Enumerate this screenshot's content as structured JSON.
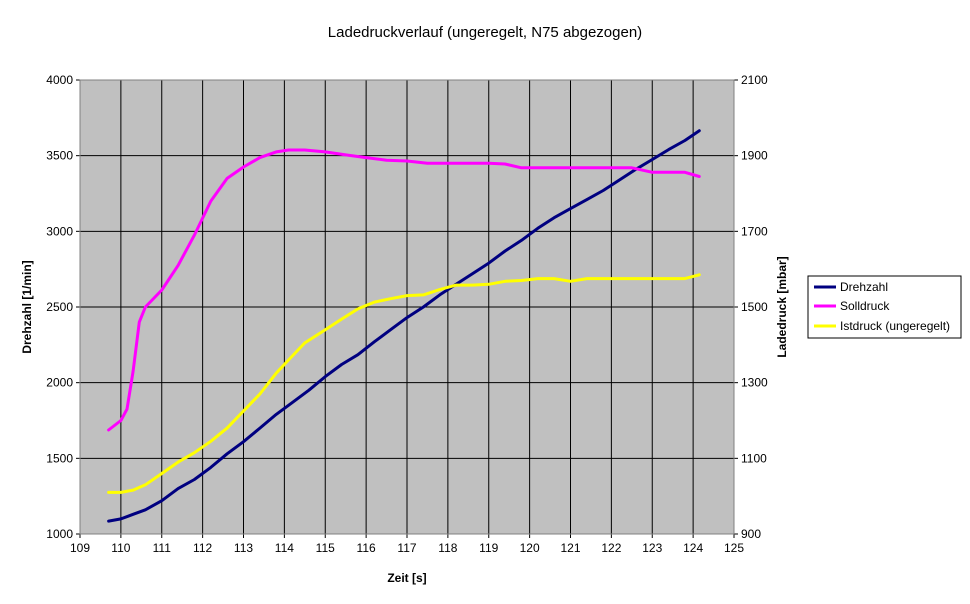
{
  "chart_data": {
    "type": "line",
    "title": "Ladedruckverlauf (ungeregelt, N75 abgezogen)",
    "xlabel": "Zeit [s]",
    "ylabel_left": "Drehzahl [1/min]",
    "ylabel_right": "Ladedruck [mbar]",
    "xlim": [
      109,
      125
    ],
    "ylim_left": [
      1000,
      4000
    ],
    "ylim_right": [
      900,
      2100
    ],
    "xticks": [
      "109",
      "110",
      "111",
      "112",
      "113",
      "114",
      "115",
      "116",
      "117",
      "118",
      "119",
      "120",
      "121",
      "122",
      "123",
      "124",
      "125"
    ],
    "yticks_left": [
      "1000",
      "1500",
      "2000",
      "2500",
      "3000",
      "3500",
      "4000"
    ],
    "yticks_right": [
      "900",
      "1100",
      "1300",
      "1500",
      "1700",
      "1900",
      "2100"
    ],
    "grid": true,
    "legend_position": "right",
    "colors": {
      "plot_background": "#c0c0c0",
      "grid": "#000000",
      "drehzahl": "#000080",
      "solldruck": "#ff00ff",
      "istdruck": "#ffff00"
    },
    "series": [
      {
        "name": "Drehzahl",
        "axis": "left",
        "x": [
          109.7,
          110.0,
          110.3,
          110.6,
          111.0,
          111.4,
          111.8,
          112.2,
          112.6,
          113.0,
          113.4,
          113.8,
          114.2,
          114.6,
          115.0,
          115.4,
          115.8,
          116.2,
          116.6,
          117.0,
          117.4,
          117.8,
          118.2,
          118.6,
          119.0,
          119.4,
          119.8,
          120.2,
          120.6,
          121.0,
          121.4,
          121.8,
          122.2,
          122.6,
          123.0,
          123.4,
          123.8,
          124.15
        ],
        "y": [
          1085,
          1100,
          1130,
          1160,
          1220,
          1300,
          1360,
          1440,
          1530,
          1610,
          1700,
          1790,
          1870,
          1950,
          2040,
          2120,
          2185,
          2270,
          2350,
          2430,
          2500,
          2580,
          2650,
          2720,
          2790,
          2870,
          2940,
          3020,
          3090,
          3150,
          3210,
          3270,
          3340,
          3410,
          3475,
          3540,
          3600,
          3665
        ]
      },
      {
        "name": "Solldruck",
        "axis": "right",
        "x": [
          109.7,
          110.0,
          110.15,
          110.3,
          110.45,
          110.6,
          111.0,
          111.4,
          111.8,
          112.2,
          112.6,
          113.0,
          113.4,
          113.8,
          114.1,
          114.5,
          115.0,
          115.5,
          116.0,
          116.5,
          117.0,
          117.5,
          118.0,
          118.5,
          119.0,
          119.4,
          119.8,
          120.2,
          120.6,
          121.0,
          121.5,
          122.0,
          122.5,
          123.0,
          123.5,
          123.8,
          124.15
        ],
        "y": [
          1175,
          1200,
          1230,
          1330,
          1460,
          1500,
          1545,
          1610,
          1690,
          1780,
          1840,
          1870,
          1895,
          1910,
          1915,
          1915,
          1910,
          1902,
          1895,
          1888,
          1886,
          1880,
          1880,
          1880,
          1880,
          1878,
          1868,
          1868,
          1868,
          1868,
          1868,
          1868,
          1868,
          1856,
          1856,
          1856,
          1845
        ]
      },
      {
        "name": "Istdruck (ungeregelt)",
        "axis": "right",
        "x": [
          109.7,
          110.0,
          110.3,
          110.6,
          111.0,
          111.4,
          111.8,
          112.2,
          112.6,
          113.0,
          113.4,
          113.8,
          114.1,
          114.5,
          115.0,
          115.4,
          115.8,
          116.2,
          116.6,
          117.0,
          117.4,
          117.8,
          118.2,
          118.6,
          119.0,
          119.4,
          119.8,
          120.2,
          120.6,
          121.0,
          121.4,
          121.8,
          122.2,
          122.6,
          123.0,
          123.4,
          123.8,
          124.15
        ],
        "y": [
          1010,
          1010,
          1016,
          1030,
          1060,
          1090,
          1115,
          1145,
          1180,
          1225,
          1270,
          1325,
          1360,
          1405,
          1440,
          1468,
          1495,
          1513,
          1522,
          1530,
          1532,
          1546,
          1558,
          1558,
          1560,
          1568,
          1570,
          1575,
          1575,
          1568,
          1575,
          1575,
          1575,
          1575,
          1575,
          1575,
          1575,
          1585
        ]
      }
    ]
  }
}
